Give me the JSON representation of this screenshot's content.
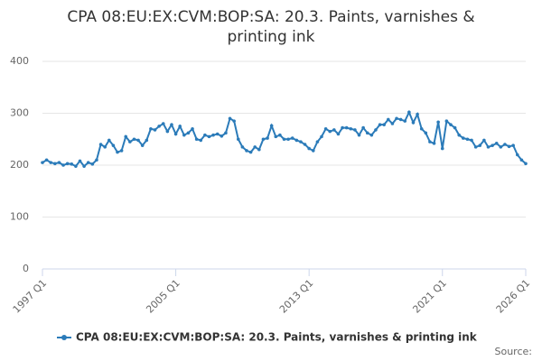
{
  "chart_data": {
    "type": "line",
    "title": "CPA 08:EU:EX:CVM:BOP:SA: 20.3. Paints, varnishes & printing ink",
    "categories": [
      "1997 Q1",
      null,
      null,
      null,
      null,
      null,
      null,
      null,
      null,
      null,
      null,
      null,
      null,
      null,
      null,
      null,
      null,
      null,
      null,
      null,
      null,
      null,
      null,
      null,
      null,
      null,
      null,
      null,
      null,
      null,
      null,
      null,
      "2005 Q1",
      null,
      null,
      null,
      null,
      null,
      null,
      null,
      null,
      null,
      null,
      null,
      null,
      null,
      null,
      null,
      null,
      null,
      null,
      null,
      null,
      null,
      null,
      null,
      null,
      null,
      null,
      null,
      null,
      null,
      null,
      null,
      "2013 Q1",
      null,
      null,
      null,
      null,
      null,
      null,
      null,
      null,
      null,
      null,
      null,
      null,
      null,
      null,
      null,
      null,
      null,
      null,
      null,
      null,
      null,
      null,
      null,
      null,
      null,
      null,
      null,
      null,
      null,
      null,
      null,
      "2021 Q1",
      null,
      null,
      null,
      null,
      null,
      null,
      null,
      null,
      null,
      null,
      null,
      null,
      null,
      null,
      null,
      null,
      null,
      null,
      null,
      "2026 Q1"
    ],
    "series": [
      {
        "name": "CPA 08:EU:EX:CVM:BOP:SA: 20.3. Paints, varnishes & printing ink",
        "color": "#2b7bb9",
        "values": [
          205,
          210,
          205,
          203,
          205,
          200,
          203,
          202,
          198,
          208,
          198,
          205,
          202,
          210,
          240,
          235,
          248,
          238,
          225,
          228,
          255,
          245,
          250,
          248,
          238,
          248,
          270,
          268,
          275,
          280,
          265,
          278,
          260,
          275,
          258,
          262,
          270,
          250,
          248,
          258,
          255,
          258,
          260,
          256,
          262,
          290,
          285,
          250,
          235,
          228,
          225,
          235,
          230,
          250,
          252,
          276,
          255,
          258,
          250,
          250,
          252,
          248,
          245,
          240,
          232,
          228,
          245,
          255,
          270,
          265,
          268,
          260,
          272,
          272,
          270,
          268,
          258,
          272,
          262,
          258,
          268,
          278,
          278,
          288,
          280,
          290,
          288,
          285,
          302,
          282,
          298,
          270,
          262,
          245,
          242,
          283,
          232,
          285,
          278,
          272,
          258,
          252,
          250,
          248,
          235,
          238,
          248,
          235,
          238,
          242,
          235,
          240,
          236,
          238,
          220,
          210,
          203
        ]
      }
    ],
    "ylim": [
      0,
      400
    ],
    "yticks": [
      0,
      100,
      200,
      300,
      400
    ],
    "grid": true,
    "source": "Source:"
  }
}
